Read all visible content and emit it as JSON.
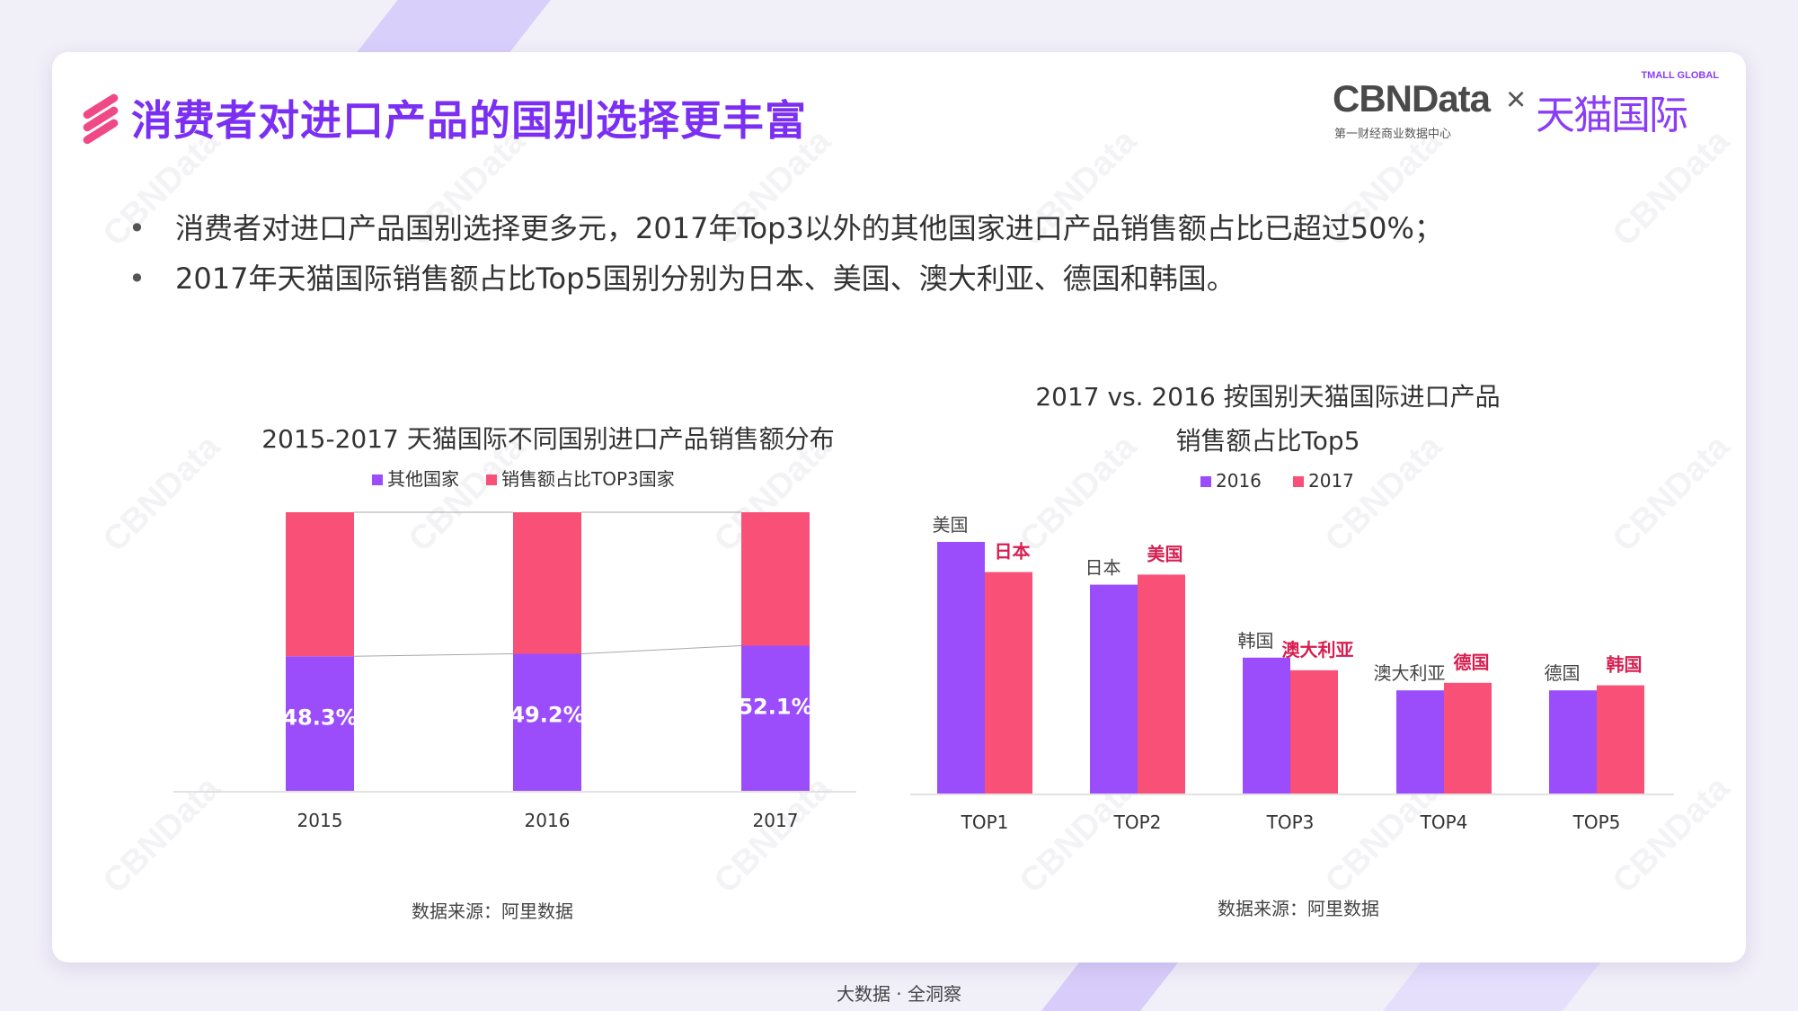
{
  "page": {
    "title": "消费者对进口产品的国别选择更丰富",
    "bullets": [
      "消费者对进口产品国别选择更多元，2017年Top3以外的其他国家进口产品销售额占比已超过50%；",
      "2017年天猫国际销售额占比Top5国别分别为日本、美国、澳大利亚、德国和韩国。"
    ],
    "footer": "大数据 · 全洞察",
    "watermark": "CBNData"
  },
  "logo": {
    "cbndata": "CBNData",
    "cbndata_sub": "第一财经商业数据中心",
    "times": "×",
    "tmall": "天猫国际",
    "tmall_en": "TMALL GLOBAL"
  },
  "colors": {
    "purple": "#9b4dfb",
    "pink": "#f95077",
    "title": "#7b2ff2",
    "highlight_label": "#d81e50"
  },
  "chart_data": [
    {
      "type": "bar",
      "stacked": true,
      "percent_stacked": true,
      "title": "2015-2017 天猫国际不同国别进口产品销售额分布",
      "categories": [
        "2015",
        "2016",
        "2017"
      ],
      "series": [
        {
          "name": "其他国家",
          "values": [
            48.3,
            49.2,
            52.1
          ],
          "labels": [
            "48.3%",
            "49.2%",
            "52.1%"
          ],
          "color": "#9b4dfb"
        },
        {
          "name": "销售额占比TOP3国家",
          "values": [
            51.7,
            50.8,
            47.9
          ],
          "color": "#f95077"
        }
      ],
      "ylim": [
        0,
        100
      ],
      "legend_position": "top",
      "series_lines": true,
      "source": "数据来源：阿里数据"
    },
    {
      "type": "bar",
      "title": "2017 vs. 2016 按国别天猫国际进口产品销售额占比Top5",
      "title_lines": [
        "2017 vs. 2016 按国别天猫国际进口产品",
        "销售额占比Top5"
      ],
      "categories": [
        "TOP1",
        "TOP2",
        "TOP3",
        "TOP4",
        "TOP5"
      ],
      "series": [
        {
          "name": "2016",
          "values": [
            100,
            83,
            54,
            41,
            41
          ],
          "labels": [
            "美国",
            "日本",
            "韩国",
            "澳大利亚",
            "德国"
          ],
          "color": "#9b4dfb"
        },
        {
          "name": "2017",
          "values": [
            88,
            87,
            49,
            44,
            43
          ],
          "labels": [
            "日本",
            "美国",
            "澳大利亚",
            "德国",
            "韩国"
          ],
          "color": "#f95077"
        }
      ],
      "values_note": "no value axis shown; values are relative bar heights",
      "legend_position": "top",
      "source": "数据来源：阿里数据"
    }
  ]
}
